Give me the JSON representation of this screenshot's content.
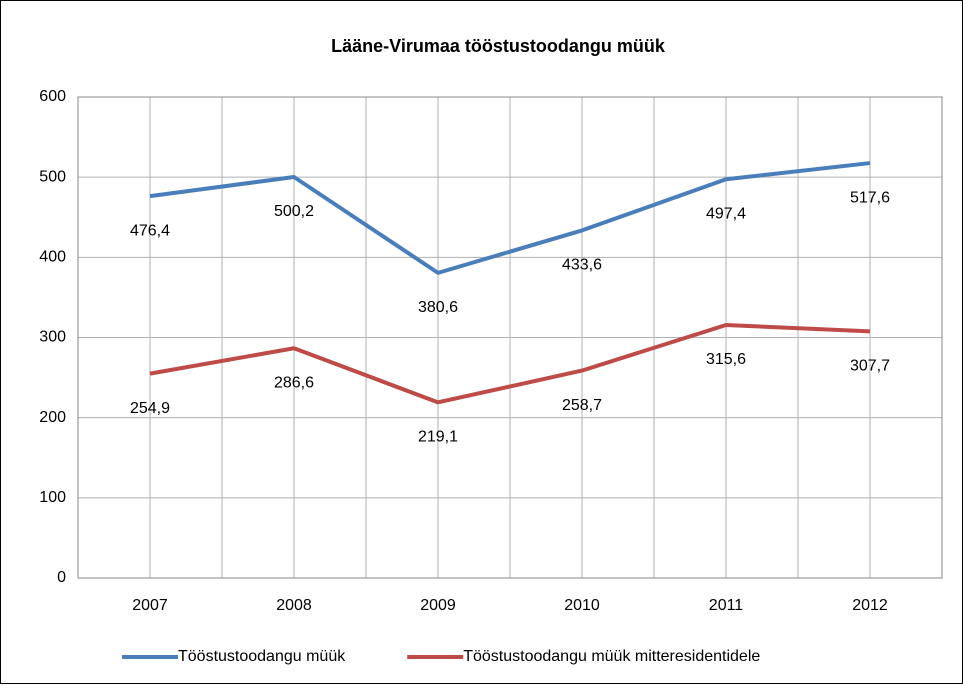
{
  "chart_data": {
    "type": "line",
    "title": "Lääne-Virumaa tööstustoodangu müük",
    "categories": [
      "2007",
      "2008",
      "2009",
      "2010",
      "2011",
      "2012"
    ],
    "series": [
      {
        "name": "Tööstustoodangu müük",
        "color": "#4a7ebb",
        "values": [
          476.4,
          500.2,
          380.6,
          433.6,
          497.4,
          517.6
        ],
        "value_labels": [
          "476,4",
          "500,2",
          "380,6",
          "433,6",
          "497,4",
          "517,6"
        ]
      },
      {
        "name": "Tööstustoodangu müük mitteresidentidele",
        "color": "#be4b48",
        "values": [
          254.9,
          286.6,
          219.1,
          258.7,
          315.6,
          307.7
        ],
        "value_labels": [
          "254,9",
          "286,6",
          "219,1",
          "258,7",
          "315,6",
          "307,7"
        ]
      }
    ],
    "ylim": [
      0,
      600
    ],
    "yticks": [
      0,
      100,
      200,
      300,
      400,
      500,
      600
    ],
    "grid": true,
    "legend": "bottom"
  }
}
